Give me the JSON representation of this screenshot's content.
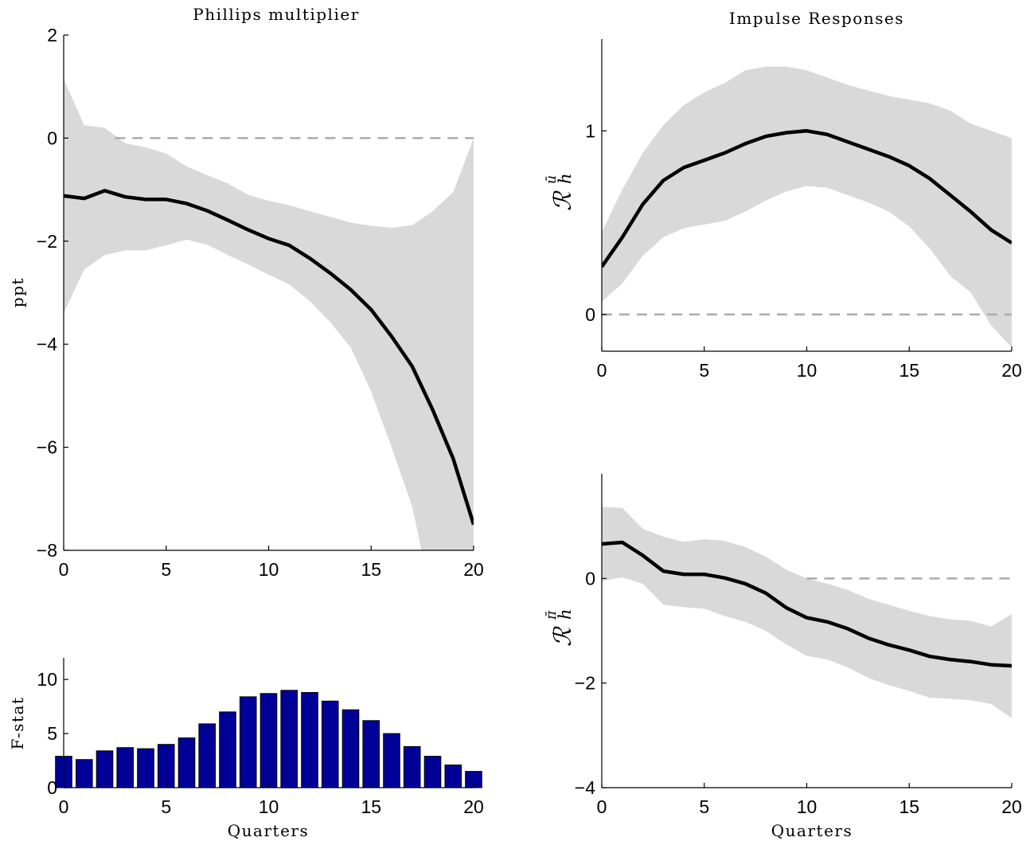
{
  "chart_data": [
    {
      "id": "phillips",
      "type": "line",
      "title": "Phillips multiplier",
      "xlabel": "",
      "ylabel": "ppt",
      "xlim": [
        0,
        20
      ],
      "ylim": [
        -8,
        2
      ],
      "xticks": [
        0,
        5,
        10,
        15,
        20
      ],
      "yticks": [
        -8,
        -6,
        -4,
        -2,
        0,
        2
      ],
      "reference_line": 0,
      "grid": false,
      "x": [
        0,
        1,
        2,
        3,
        4,
        5,
        6,
        7,
        8,
        9,
        10,
        11,
        12,
        13,
        14,
        15,
        16,
        17,
        18,
        19,
        20
      ],
      "series": [
        {
          "values": [
            -1.12,
            -1.17,
            -1.02,
            -1.14,
            -1.19,
            -1.19,
            -1.27,
            -1.41,
            -1.59,
            -1.78,
            -1.95,
            -2.08,
            -2.33,
            -2.62,
            -2.94,
            -3.33,
            -3.85,
            -4.43,
            -5.27,
            -6.22,
            -7.5
          ],
          "lower": [
            -3.4,
            -2.55,
            -2.27,
            -2.18,
            -2.18,
            -2.08,
            -1.97,
            -2.07,
            -2.27,
            -2.45,
            -2.65,
            -2.84,
            -3.16,
            -3.57,
            -4.06,
            -4.92,
            -6.0,
            -7.15,
            -9.0,
            -9.5,
            -9.5
          ],
          "upper": [
            1.15,
            0.25,
            0.2,
            -0.1,
            -0.18,
            -0.3,
            -0.55,
            -0.72,
            -0.88,
            -1.1,
            -1.22,
            -1.3,
            -1.42,
            -1.53,
            -1.64,
            -1.7,
            -1.74,
            -1.69,
            -1.42,
            -1.05,
            0.0
          ]
        }
      ]
    },
    {
      "id": "fstat",
      "type": "bar",
      "title": "",
      "xlabel": "Quarters",
      "ylabel": "F-stat",
      "xlim": [
        0,
        20
      ],
      "ylim": [
        0,
        12
      ],
      "xticks": [
        0,
        5,
        10,
        15,
        20
      ],
      "yticks": [
        0,
        5,
        10
      ],
      "grid": false,
      "bar_color": "#000099",
      "categories": [
        0,
        1,
        2,
        3,
        4,
        5,
        6,
        7,
        8,
        9,
        10,
        11,
        12,
        13,
        14,
        15,
        16,
        17,
        18,
        19,
        20
      ],
      "values": [
        2.9,
        2.6,
        3.4,
        3.7,
        3.6,
        4.0,
        4.6,
        5.9,
        7.0,
        8.4,
        8.7,
        9.0,
        8.8,
        8.0,
        7.2,
        6.2,
        5.0,
        3.8,
        2.9,
        2.1,
        1.5
      ]
    },
    {
      "id": "ir_u",
      "type": "line",
      "title": "Impulse Responses",
      "xlabel": "",
      "ylabel": "R_h^ū",
      "xlim": [
        0,
        20
      ],
      "ylim": [
        -0.2,
        1.5
      ],
      "xticks": [
        0,
        5,
        10,
        15,
        20
      ],
      "yticks": [
        0,
        1
      ],
      "reference_line": 0,
      "grid": false,
      "x": [
        0,
        1,
        2,
        3,
        4,
        5,
        6,
        7,
        8,
        9,
        10,
        11,
        12,
        13,
        14,
        15,
        16,
        17,
        18,
        19,
        20
      ],
      "series": [
        {
          "values": [
            0.26,
            0.42,
            0.6,
            0.73,
            0.8,
            0.84,
            0.88,
            0.93,
            0.97,
            0.99,
            1.0,
            0.98,
            0.94,
            0.9,
            0.86,
            0.81,
            0.74,
            0.65,
            0.56,
            0.46,
            0.39
          ],
          "lower": [
            0.07,
            0.17,
            0.32,
            0.42,
            0.47,
            0.49,
            0.51,
            0.56,
            0.62,
            0.67,
            0.7,
            0.69,
            0.65,
            0.61,
            0.56,
            0.48,
            0.36,
            0.21,
            0.12,
            -0.06,
            -0.18
          ],
          "upper": [
            0.45,
            0.68,
            0.88,
            1.03,
            1.14,
            1.21,
            1.26,
            1.33,
            1.35,
            1.35,
            1.33,
            1.29,
            1.25,
            1.22,
            1.19,
            1.17,
            1.15,
            1.11,
            1.04,
            1.0,
            0.96
          ]
        }
      ]
    },
    {
      "id": "ir_pi",
      "type": "line",
      "title": "",
      "xlabel": "Quarters",
      "ylabel": "R_h^π̄",
      "xlim": [
        0,
        20
      ],
      "ylim": [
        -4,
        2
      ],
      "xticks": [
        0,
        5,
        10,
        15,
        20
      ],
      "yticks": [
        -4,
        -2,
        0
      ],
      "reference_line": 0,
      "grid": false,
      "x": [
        0,
        1,
        2,
        3,
        4,
        5,
        6,
        7,
        8,
        9,
        10,
        11,
        12,
        13,
        14,
        15,
        16,
        17,
        18,
        19,
        20
      ],
      "series": [
        {
          "values": [
            0.66,
            0.69,
            0.44,
            0.14,
            0.08,
            0.08,
            0.01,
            -0.1,
            -0.28,
            -0.56,
            -0.75,
            -0.83,
            -0.96,
            -1.14,
            -1.27,
            -1.37,
            -1.49,
            -1.55,
            -1.59,
            -1.65,
            -1.67
          ],
          "lower": [
            -0.05,
            0.02,
            -0.1,
            -0.5,
            -0.55,
            -0.58,
            -0.72,
            -0.83,
            -1.0,
            -1.26,
            -1.48,
            -1.55,
            -1.7,
            -1.9,
            -2.04,
            -2.15,
            -2.28,
            -2.3,
            -2.33,
            -2.4,
            -2.67
          ],
          "upper": [
            1.37,
            1.35,
            0.95,
            0.8,
            0.7,
            0.75,
            0.72,
            0.6,
            0.42,
            0.17,
            0.0,
            -0.1,
            -0.22,
            -0.39,
            -0.5,
            -0.62,
            -0.72,
            -0.78,
            -0.81,
            -0.92,
            -0.68
          ]
        }
      ]
    }
  ]
}
